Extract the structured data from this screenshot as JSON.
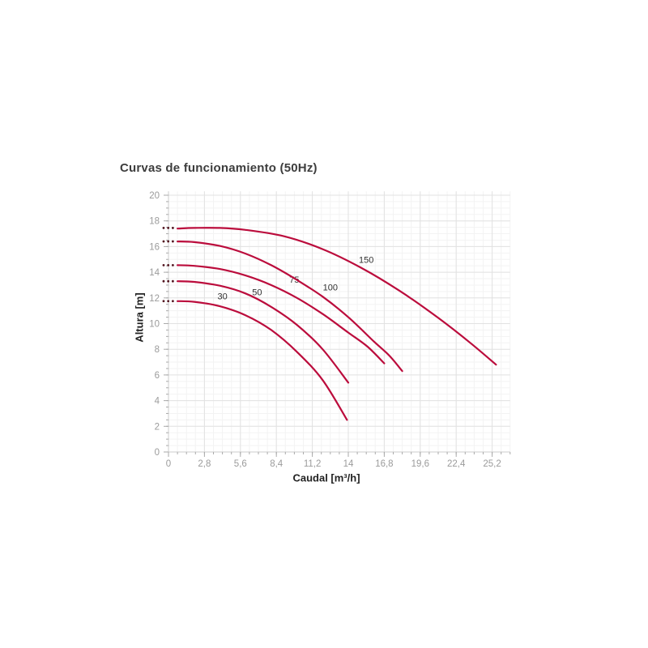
{
  "chart_data": {
    "type": "line",
    "title": "Curvas de funcionamiento (50Hz)",
    "xlabel": "Caudal [m³/h]",
    "ylabel": "Altura [m]",
    "xlim": [
      0,
      26.6
    ],
    "ylim": [
      0,
      20.3
    ],
    "grid": true,
    "legend_position": "inline-labels-on-curves",
    "x_major_ticks": [
      0,
      2.8,
      5.6,
      8.4,
      11.2,
      14,
      16.8,
      19.6,
      22.4,
      25.2
    ],
    "x_tick_labels": [
      "0",
      "2,8",
      "5,6",
      "8,4",
      "11,2",
      "14",
      "16,8",
      "19,6",
      "22,4",
      "25,2"
    ],
    "y_major_ticks": [
      0,
      2,
      4,
      6,
      8,
      10,
      12,
      14,
      16,
      18,
      20
    ],
    "y_tick_labels": [
      "0",
      "2",
      "4",
      "6",
      "8",
      "10",
      "12",
      "14",
      "16",
      "18",
      "20"
    ],
    "x_minor_step": 0.7,
    "y_minor_step": 0.5,
    "colors": {
      "curve": "#bb0c3c",
      "dotted_head": "#52141f",
      "grid_major": "#e2e2e2",
      "grid_minor": "#f3f3f3",
      "axis": "#cccccc",
      "tick": "#aaaaaa",
      "tick_label": "#9b9b9b",
      "curve_label": "#303030"
    },
    "series": [
      {
        "name": "30",
        "label_pos": [
          4.2,
          12.15
        ],
        "head_y": 11.75,
        "points": [
          [
            0.7,
            11.75
          ],
          [
            2,
            11.7
          ],
          [
            4,
            11.35
          ],
          [
            6,
            10.65
          ],
          [
            8,
            9.5
          ],
          [
            10,
            7.8
          ],
          [
            12,
            5.6
          ],
          [
            13.9,
            2.5
          ]
        ]
      },
      {
        "name": "50",
        "label_pos": [
          6.9,
          12.45
        ],
        "head_y": 13.3,
        "points": [
          [
            0.7,
            13.3
          ],
          [
            2,
            13.25
          ],
          [
            4,
            12.95
          ],
          [
            6,
            12.35
          ],
          [
            8,
            11.3
          ],
          [
            10,
            9.9
          ],
          [
            12,
            8.0
          ],
          [
            14,
            5.4
          ]
        ]
      },
      {
        "name": "75",
        "label_pos": [
          9.8,
          13.45
        ],
        "head_y": 14.55,
        "points": [
          [
            0.7,
            14.55
          ],
          [
            2,
            14.5
          ],
          [
            4,
            14.25
          ],
          [
            6,
            13.75
          ],
          [
            8,
            13.0
          ],
          [
            10,
            12.0
          ],
          [
            12,
            10.75
          ],
          [
            14,
            9.3
          ],
          [
            15.5,
            8.2
          ],
          [
            16.8,
            6.9
          ]
        ]
      },
      {
        "name": "100",
        "label_pos": [
          12.6,
          12.85
        ],
        "head_y": 16.4,
        "points": [
          [
            0.7,
            16.4
          ],
          [
            2,
            16.35
          ],
          [
            4,
            16.05
          ],
          [
            6,
            15.45
          ],
          [
            8,
            14.55
          ],
          [
            10,
            13.4
          ],
          [
            12,
            12.1
          ],
          [
            14,
            10.5
          ],
          [
            16,
            8.6
          ],
          [
            17.2,
            7.5
          ],
          [
            18.2,
            6.3
          ]
        ]
      },
      {
        "name": "150",
        "label_pos": [
          15.4,
          15.0
        ],
        "head_y": 17.45,
        "points": [
          [
            0.7,
            17.4
          ],
          [
            2,
            17.45
          ],
          [
            4,
            17.45
          ],
          [
            6,
            17.3
          ],
          [
            9,
            16.8
          ],
          [
            12,
            15.8
          ],
          [
            15,
            14.35
          ],
          [
            18,
            12.55
          ],
          [
            21,
            10.45
          ],
          [
            23.5,
            8.5
          ],
          [
            25.5,
            6.8
          ]
        ]
      }
    ]
  }
}
